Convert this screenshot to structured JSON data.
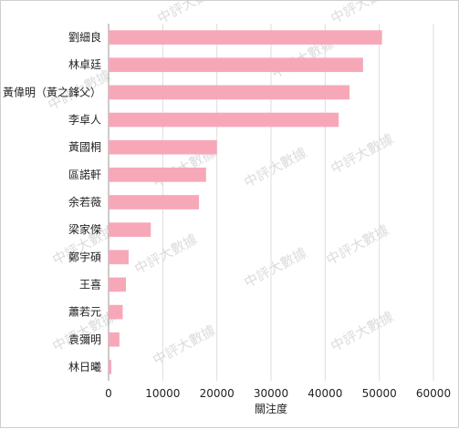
{
  "watermark": "中評大數據",
  "chart_data": {
    "type": "bar",
    "orientation": "horizontal",
    "categories": [
      "劉細良",
      "林卓廷",
      "黃偉明（黃之鋒父）",
      "李卓人",
      "黃國桐",
      "區諾軒",
      "余若薇",
      "梁家傑",
      "鄭宇碩",
      "王喜",
      "蕭若元",
      "袁彌明",
      "林日曦"
    ],
    "values": [
      50500,
      47000,
      44500,
      42500,
      20000,
      18000,
      16700,
      7800,
      3700,
      3200,
      2600,
      2000,
      500
    ],
    "xlabel": "關注度",
    "xlim": [
      0,
      60000
    ],
    "xticks": [
      "0",
      "10000",
      "20000",
      "30000",
      "40000",
      "50000",
      "60000"
    ],
    "grid": "vertical",
    "bar_color": "#f7a8b8"
  }
}
